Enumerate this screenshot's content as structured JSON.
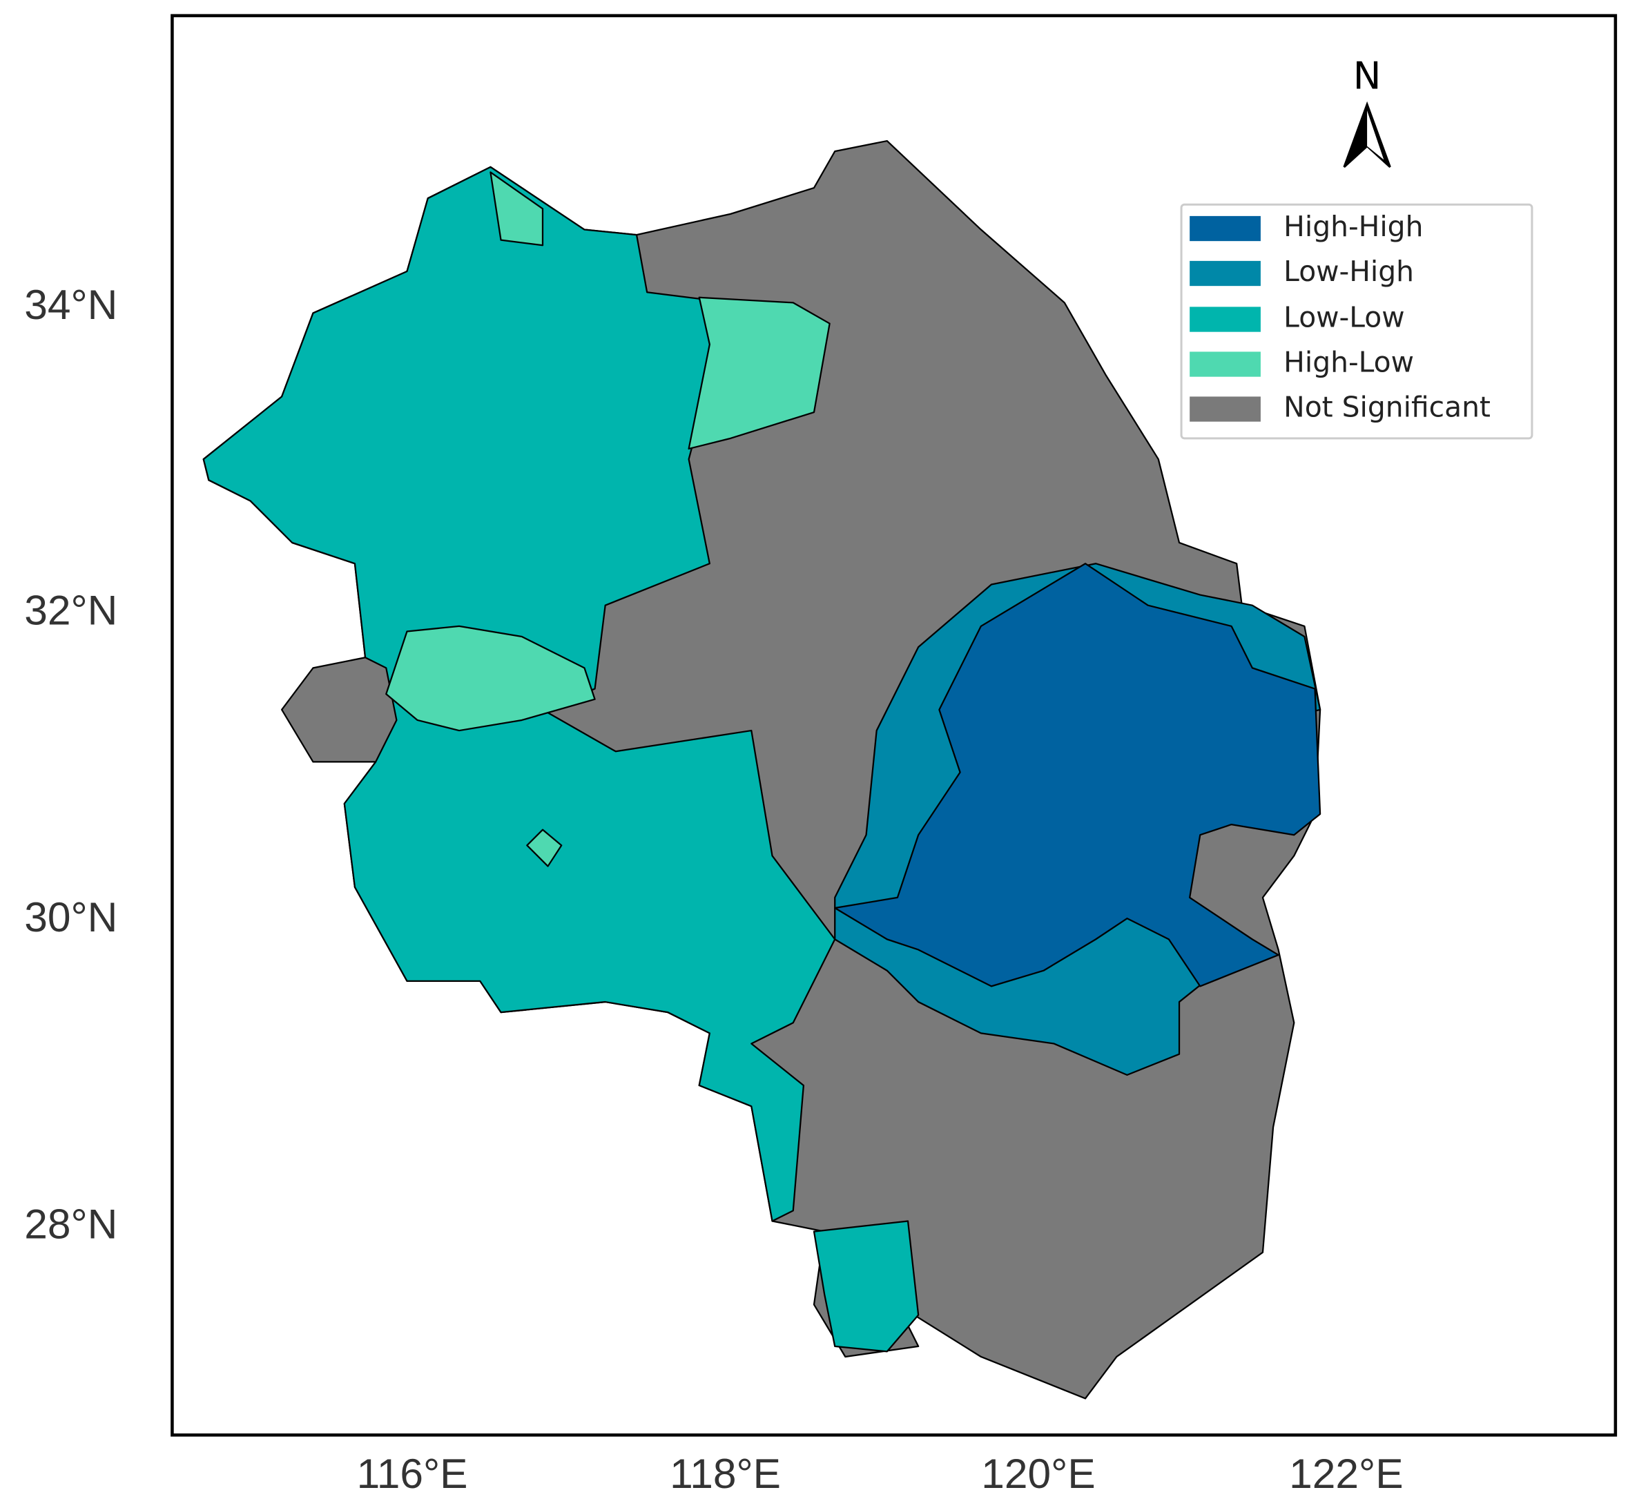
{
  "map": {
    "lat_labels": [
      "34°N",
      "32°N",
      "30°N",
      "28°N"
    ],
    "lon_labels": [
      "116°E",
      "118°E",
      "120°E",
      "122°E"
    ],
    "north_label": "N",
    "legend": [
      {
        "label": "High-High",
        "color": "#0062a0"
      },
      {
        "label": "Low-High",
        "color": "#0088a8"
      },
      {
        "label": "Low-Low",
        "color": "#00b5ad"
      },
      {
        "label": "High-Low",
        "color": "#4fd9b0"
      },
      {
        "label": "Not Significant",
        "color": "#7a7a7a"
      }
    ]
  }
}
